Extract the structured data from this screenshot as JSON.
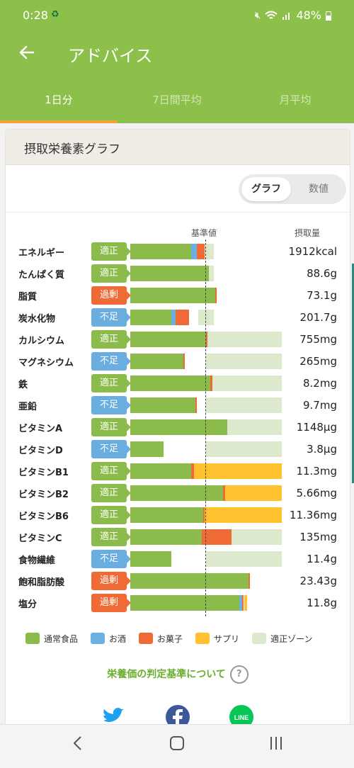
{
  "status": {
    "time": "0:28",
    "small_icon": "♻",
    "battery": "48%"
  },
  "appbar": {
    "title": "アドバイス"
  },
  "tabs": [
    {
      "label": "1日分"
    },
    {
      "label": "7日間平均"
    },
    {
      "label": "月平均"
    }
  ],
  "card": {
    "title": "摂取栄養素グラフ",
    "toggle_graph": "グラフ",
    "toggle_values": "数値",
    "ref_header": "基準値",
    "intake_header": "摂取量"
  },
  "colors": {
    "food": "#8bbb4b",
    "alcohol": "#6ab0e0",
    "sweets": "#f06a36",
    "supplement": "#ffc12e",
    "zone": "#dde9cd",
    "badge_ok": "#8bbb4b",
    "badge_low": "#6aaee0",
    "badge_over": "#f06a36"
  },
  "nutrients": [
    {
      "name": "エネルギー",
      "status": "適正",
      "value": "1912kcal",
      "zone": [
        0.45,
        0.55
      ],
      "food": 0.4,
      "alcohol": 0.04,
      "sweets": 0.05,
      "supplement": 0
    },
    {
      "name": "たんぱく質",
      "status": "適正",
      "value": "88.6g",
      "zone": [
        0.45,
        0.55
      ],
      "food": 0.52,
      "alcohol": 0,
      "sweets": 0,
      "supplement": 0
    },
    {
      "name": "脂質",
      "status": "過剰",
      "value": "73.1g",
      "zone": [
        0.45,
        0.55
      ],
      "food": 0.56,
      "alcohol": 0,
      "sweets": 0.01,
      "supplement": 0
    },
    {
      "name": "炭水化物",
      "status": "不足",
      "value": "201.7g",
      "zone": [
        0.45,
        0.55
      ],
      "food": 0.27,
      "alcohol": 0.03,
      "sweets": 0.09,
      "supplement": 0
    },
    {
      "name": "カルシウム",
      "status": "適正",
      "value": "755mg",
      "zone": [
        0.5,
        1.0
      ],
      "food": 0.5,
      "alcohol": 0,
      "sweets": 0.005,
      "supplement": 0
    },
    {
      "name": "マグネシウム",
      "status": "不足",
      "value": "265mg",
      "zone": [
        0.5,
        1.0
      ],
      "food": 0.35,
      "alcohol": 0,
      "sweets": 0.005,
      "supplement": 0
    },
    {
      "name": "鉄",
      "status": "適正",
      "value": "8.2mg",
      "zone": [
        0.5,
        1.0
      ],
      "food": 0.53,
      "alcohol": 0,
      "sweets": 0.01,
      "supplement": 0
    },
    {
      "name": "亜鉛",
      "status": "不足",
      "value": "9.7mg",
      "zone": [
        0.5,
        1.0
      ],
      "food": 0.43,
      "alcohol": 0,
      "sweets": 0.005,
      "supplement": 0
    },
    {
      "name": "ビタミンA",
      "status": "適正",
      "value": "1148μg",
      "zone": [
        0.5,
        1.0
      ],
      "food": 0.64,
      "alcohol": 0,
      "sweets": 0,
      "supplement": 0
    },
    {
      "name": "ビタミンD",
      "status": "不足",
      "value": "3.8μg",
      "zone": [
        0.5,
        1.0
      ],
      "food": 0.22,
      "alcohol": 0,
      "sweets": 0,
      "supplement": 0
    },
    {
      "name": "ビタミンB1",
      "status": "適正",
      "value": "11.3mg",
      "zone": [
        0.5,
        1.0
      ],
      "food": 0.4,
      "alcohol": 0,
      "sweets": 0.02,
      "supplement": 0.58
    },
    {
      "name": "ビタミンB2",
      "status": "適正",
      "value": "5.66mg",
      "zone": [
        0.5,
        1.0
      ],
      "food": 0.61,
      "alcohol": 0,
      "sweets": 0.015,
      "supplement": 0.375
    },
    {
      "name": "ビタミンB6",
      "status": "適正",
      "value": "11.36mg",
      "zone": [
        0.5,
        1.0
      ],
      "food": 0.48,
      "alcohol": 0,
      "sweets": 0.01,
      "supplement": 0.51
    },
    {
      "name": "ビタミンC",
      "status": "適正",
      "value": "135mg",
      "zone": [
        0.5,
        1.0
      ],
      "food": 0.47,
      "alcohol": 0,
      "sweets": 0.2,
      "supplement": 0
    },
    {
      "name": "食物繊維",
      "status": "不足",
      "value": "11.4g",
      "zone": [
        0.5,
        1.0
      ],
      "food": 0.27,
      "alcohol": 0,
      "sweets": 0,
      "supplement": 0
    },
    {
      "name": "飽和脂肪酸",
      "status": "過剰",
      "value": "23.43g",
      "zone": [
        0.0,
        0.5
      ],
      "food": 0.78,
      "alcohol": 0,
      "sweets": 0.01,
      "supplement": 0
    },
    {
      "name": "塩分",
      "status": "過剰",
      "value": "11.8g",
      "zone": [
        0.0,
        0.5
      ],
      "food": 0.72,
      "alcohol": 0.02,
      "sweets": 0.01,
      "supplement": 0.02
    }
  ],
  "legend": [
    {
      "label": "通常食品",
      "color": "#8bbb4b"
    },
    {
      "label": "お酒",
      "color": "#6ab0e0"
    },
    {
      "label": "お菓子",
      "color": "#f06a36"
    },
    {
      "label": "サプリ",
      "color": "#ffc12e"
    },
    {
      "label": "適正ゾーン",
      "color": "#dde9cd"
    }
  ],
  "footer": {
    "criteria_link": "栄養価の判定基準について",
    "help": "?"
  },
  "share": [
    {
      "name": "twitter-icon",
      "color": "#1da1f2"
    },
    {
      "name": "facebook-icon",
      "color": "#3b5998"
    },
    {
      "name": "line-icon",
      "color": "#06c755"
    }
  ]
}
